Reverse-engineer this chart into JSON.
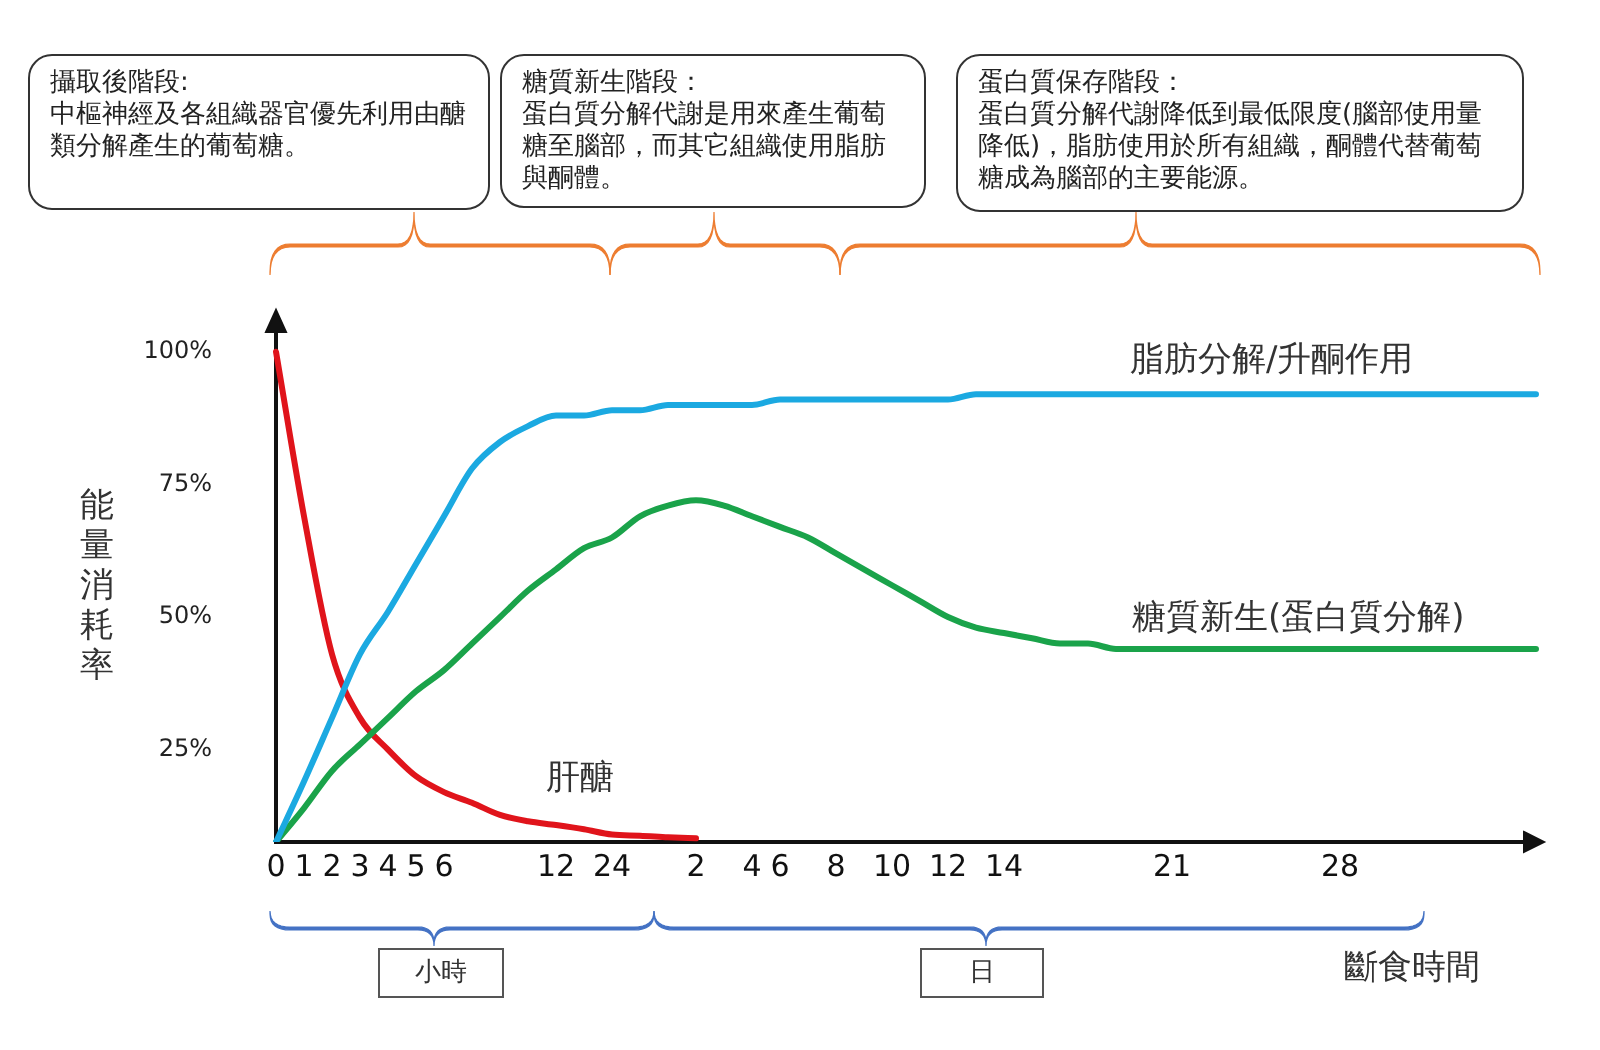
{
  "chart_data": {
    "type": "line",
    "xlabel": "斷食時間",
    "ylabel": "能量消耗率",
    "annotations": [
      "攝取後階段:",
      "中樞神經及各組織器官優先利用由醣類分解產生的葡萄糖。",
      "糖質新生階段：",
      "蛋白質分解代謝是用來產生葡萄糖至腦部，而其它組織使用脂肪與酮體。",
      "蛋白質保存階段：",
      "蛋白質分解代謝降低到最低限度(腦部使用量降低)，脂肪使用於所有組織，酮體代替葡萄糖成為腦部的主要能源。",
      "小時",
      "日"
    ],
    "categories": [
      "0",
      "1",
      "2",
      "3",
      "4",
      "5",
      "6",
      null,
      null,
      null,
      "12",
      null,
      "24",
      null,
      null,
      "2",
      null,
      "4",
      "6",
      null,
      "8",
      null,
      "10",
      null,
      "12",
      null,
      "14",
      null,
      null,
      null,
      null,
      null,
      "21",
      null,
      null,
      null,
      null,
      null,
      "28",
      null,
      null,
      null,
      null,
      null,
      null,
      null
    ],
    "ylim": [
      7.6,
      106
    ],
    "yticks": [
      {
        "value": 25,
        "label": "25%"
      },
      {
        "value": 50,
        "label": "50%"
      },
      {
        "value": 75,
        "label": "75%"
      },
      {
        "value": 100,
        "label": "100%"
      }
    ],
    "grid": false,
    "legend": false,
    "marker": "none",
    "line_style": "solid",
    "series": [
      {
        "name": "脂肪分解/升酮作用",
        "color": "#1ba9e1",
        "values": [
          7.6,
          19,
          31,
          43,
          51,
          60,
          69,
          78,
          83,
          86,
          88,
          88,
          89,
          89,
          90,
          90,
          90,
          90,
          91,
          91,
          91,
          91,
          91,
          91,
          91,
          92,
          92,
          92,
          92,
          92,
          92,
          92,
          92,
          92,
          92,
          92,
          92,
          92,
          92,
          92,
          92,
          92,
          92,
          92,
          92,
          92
        ]
      },
      {
        "name": "糖質新生(蛋白質分解)",
        "color": "#1aa34a",
        "values": [
          7.6,
          14,
          21,
          26,
          31,
          36,
          40,
          45,
          50,
          55,
          59,
          63,
          65,
          69,
          71,
          72,
          71,
          69,
          67,
          65,
          62,
          59,
          56,
          53,
          50,
          48,
          47,
          46,
          45,
          45,
          44,
          44,
          44,
          44,
          44,
          44,
          44,
          44,
          44,
          44,
          44,
          44,
          44,
          44,
          44,
          44
        ]
      },
      {
        "name": "肝醣",
        "color": "#e0141b",
        "values": [
          100,
          69,
          43,
          31,
          25,
          20,
          17,
          15,
          12.7,
          11.5,
          10.8,
          10,
          9,
          8.8,
          8.5,
          8.3,
          null,
          null,
          null,
          null,
          null,
          null,
          null,
          null,
          null,
          null,
          null,
          null,
          null,
          null,
          null,
          null,
          null,
          null,
          null,
          null,
          null,
          null,
          null,
          null,
          null,
          null,
          null,
          null,
          null,
          null
        ]
      }
    ]
  }
}
